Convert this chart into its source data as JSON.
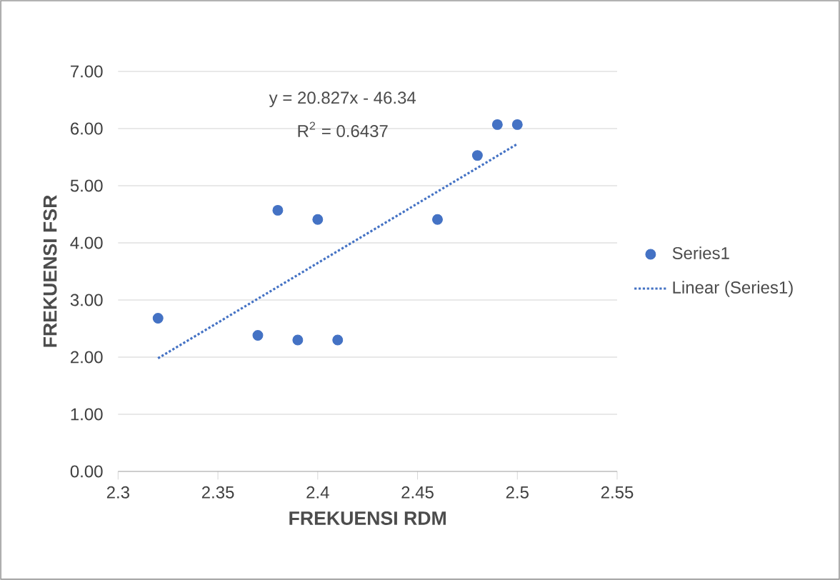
{
  "chart_data": {
    "type": "scatter",
    "xlabel": "FREKUENSI RDM",
    "ylabel": "FREKUENSI FSR",
    "annotations": [
      "y = 20.827x - 46.34",
      "R$^{2}$ = 0.6437"
    ],
    "series": [
      {
        "name": "Series1",
        "color": "#4472c4",
        "marker": "circle",
        "x": [
          2.32,
          2.37,
          2.38,
          2.39,
          2.4,
          2.41,
          2.46,
          2.48,
          2.49,
          2.5
        ],
        "values": [
          2.68,
          2.38,
          4.57,
          2.3,
          4.41,
          2.3,
          4.41,
          5.53,
          6.07,
          6.07
        ]
      },
      {
        "name": "Linear (Series1)",
        "type": "line",
        "color": "#4472c4",
        "marker": "none",
        "line_style": "dotted",
        "x": [
          2.32,
          2.5
        ],
        "values": [
          1.98,
          5.73
        ]
      }
    ],
    "xlim": [
      2.3,
      2.55
    ],
    "xticks": [
      2.3,
      2.35,
      2.4,
      2.45,
      2.5,
      2.55
    ],
    "ylim": [
      0,
      7
    ],
    "yticks": [
      {
        "value": 0,
        "label": "0.00"
      },
      {
        "value": 1,
        "label": "1.00"
      },
      {
        "value": 2,
        "label": "2.00"
      },
      {
        "value": 3,
        "label": "3.00"
      },
      {
        "value": 4,
        "label": "4.00"
      },
      {
        "value": 5,
        "label": "5.00"
      },
      {
        "value": 6,
        "label": "6.00"
      },
      {
        "value": 7,
        "label": "7.00"
      }
    ],
    "grid": "y",
    "legend": "right"
  }
}
